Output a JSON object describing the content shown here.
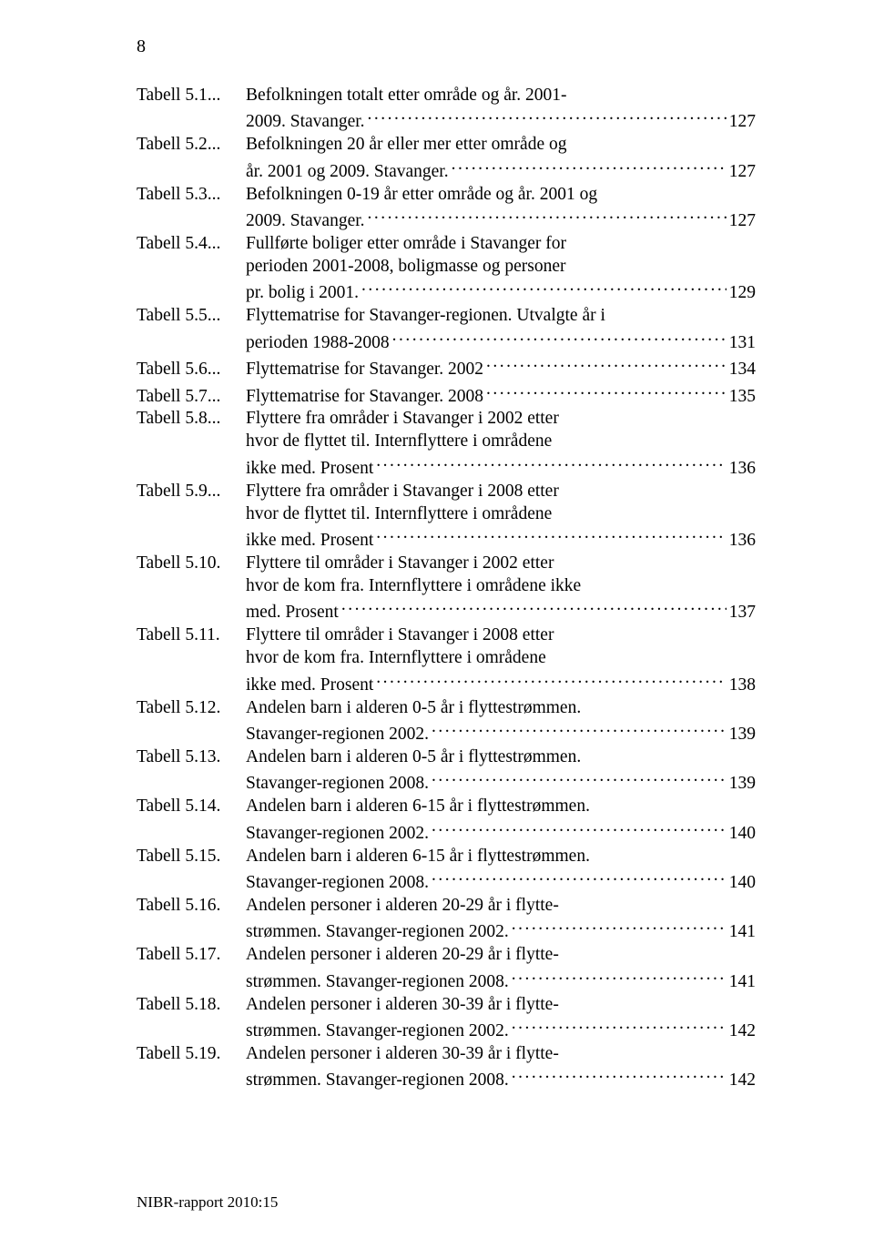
{
  "page_number": "8",
  "entries": [
    {
      "label": "Tabell 5.1",
      "lines": [
        "Befolkningen totalt etter område og år. 2001-",
        "2009. Stavanger."
      ],
      "page": "127"
    },
    {
      "label": "Tabell 5.2",
      "lines": [
        "Befolkningen 20 år eller mer etter område og",
        "år. 2001 og 2009. Stavanger."
      ],
      "page": "127"
    },
    {
      "label": "Tabell 5.3",
      "lines": [
        "Befolkningen 0-19 år etter område og år. 2001 og",
        "2009. Stavanger."
      ],
      "page": "127"
    },
    {
      "label": "Tabell 5.4",
      "lines": [
        "Fullførte boliger etter område i Stavanger for",
        "perioden 2001-2008, boligmasse og personer",
        "pr. bolig i 2001."
      ],
      "page": "129"
    },
    {
      "label": "Tabell 5.5",
      "lines": [
        "Flyttematrise for Stavanger-regionen. Utvalgte år i",
        "perioden 1988-2008"
      ],
      "page": "131"
    },
    {
      "label": "Tabell 5.6",
      "lines": [
        "Flyttematrise for Stavanger. 2002"
      ],
      "page": "134"
    },
    {
      "label": "Tabell 5.7",
      "lines": [
        "Flyttematrise for Stavanger. 2008"
      ],
      "page": "135"
    },
    {
      "label": "Tabell 5.8",
      "lines": [
        "Flyttere fra områder i Stavanger i 2002 etter",
        "hvor de flyttet til. Internflyttere i områdene",
        "ikke med. Prosent"
      ],
      "page": "136"
    },
    {
      "label": "Tabell 5.9",
      "lines": [
        "Flyttere fra områder i Stavanger i 2008 etter",
        "hvor de flyttet til. Internflyttere i områdene",
        "ikke med. Prosent"
      ],
      "page": "136"
    },
    {
      "label": "Tabell 5.10",
      "lines": [
        "Flyttere til områder i Stavanger i 2002 etter",
        "hvor de kom fra. Internflyttere i områdene ikke",
        "med. Prosent"
      ],
      "page": "137"
    },
    {
      "label": "Tabell 5.11",
      "lines": [
        "Flyttere til områder i Stavanger i 2008 etter",
        "hvor de kom fra. Internflyttere i områdene",
        "ikke med. Prosent"
      ],
      "page": "138"
    },
    {
      "label": "Tabell 5.12",
      "lines": [
        "Andelen barn i alderen 0-5 år i flyttestrømmen.",
        "Stavanger-regionen 2002."
      ],
      "page": "139"
    },
    {
      "label": "Tabell 5.13",
      "lines": [
        "Andelen barn i alderen 0-5 år i flyttestrømmen.",
        "Stavanger-regionen 2008."
      ],
      "page": "139"
    },
    {
      "label": "Tabell 5.14",
      "lines": [
        "Andelen barn i alderen 6-15 år i flyttestrømmen.",
        "Stavanger-regionen 2002."
      ],
      "page": "140"
    },
    {
      "label": "Tabell 5.15",
      "lines": [
        "Andelen barn i alderen 6-15 år i flyttestrømmen.",
        "Stavanger-regionen 2008."
      ],
      "page": "140"
    },
    {
      "label": "Tabell 5.16",
      "lines": [
        "Andelen personer i alderen 20-29 år i flytte-",
        "strømmen. Stavanger-regionen 2002."
      ],
      "page": "141"
    },
    {
      "label": "Tabell 5.17",
      "lines": [
        "Andelen personer i alderen 20-29 år i flytte-",
        "strømmen. Stavanger-regionen 2008."
      ],
      "page": "141"
    },
    {
      "label": "Tabell 5.18",
      "lines": [
        "Andelen personer i alderen 30-39 år i flytte-",
        "strømmen. Stavanger-regionen 2002."
      ],
      "page": "142"
    },
    {
      "label": "Tabell 5.19",
      "lines": [
        "Andelen personer i alderen 30-39 år i flytte-",
        "strømmen. Stavanger-regionen 2008."
      ],
      "page": "142"
    }
  ],
  "footer": "NIBR-rapport 2010:15",
  "label_sep": "...",
  "label_sep_dot": "."
}
